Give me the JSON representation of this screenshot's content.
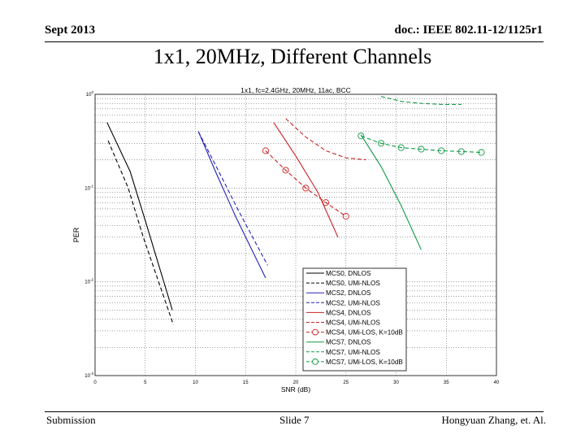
{
  "header": {
    "date": "Sept 2013",
    "doc": "doc.: IEEE 802.11-12/1125r1"
  },
  "slide_title": "1x1, 20MHz, Different Channels",
  "footer": {
    "submission": "Submission",
    "slide": "Slide 7",
    "author": "Hongyuan Zhang, et. Al."
  },
  "chart_data": {
    "type": "line",
    "title": "1x1, fc=2.4GHz, 20MHz, 11ac, BCC",
    "xlabel": "SNR (dB)",
    "ylabel": "PER",
    "yscale": "log",
    "xlim": [
      0,
      40
    ],
    "ylim": [
      0.001,
      1
    ],
    "x_ticks": [
      0,
      5,
      10,
      15,
      20,
      25,
      30,
      35,
      40
    ],
    "x_tick_labels": [
      "0",
      "5",
      "10",
      "15",
      "20",
      "25",
      "30",
      "35",
      "40"
    ],
    "y_ticks": [
      0.001,
      0.01,
      0.1,
      1
    ],
    "y_tick_labels": [
      "10^-3",
      "10^-2",
      "10^-1",
      "10^0"
    ],
    "grid": true,
    "legend_position": "bottom-right",
    "series": [
      {
        "name": "MCS0, DNLOS",
        "color": "#000000",
        "style": "solid",
        "marker": "none",
        "x": [
          1.2,
          3.5,
          5.0,
          7.7
        ],
        "y": [
          0.5,
          0.15,
          0.045,
          0.005
        ]
      },
      {
        "name": "MCS0, UMi-NLOS",
        "color": "#000000",
        "style": "dashed",
        "marker": "none",
        "x": [
          1.3,
          3.3,
          4.8,
          7.8
        ],
        "y": [
          0.32,
          0.1,
          0.03,
          0.0035
        ]
      },
      {
        "name": "MCS2, DNLOS",
        "color": "#2222bb",
        "style": "solid",
        "marker": "none",
        "x": [
          10.3,
          12.0,
          14.0,
          17.0
        ],
        "y": [
          0.4,
          0.15,
          0.05,
          0.011
        ]
      },
      {
        "name": "MCS2, UMi-NLOS",
        "color": "#2222bb",
        "style": "dashed",
        "marker": "none",
        "x": [
          10.3,
          12.2,
          14.2,
          17.2
        ],
        "y": [
          0.4,
          0.16,
          0.06,
          0.015
        ]
      },
      {
        "name": "MCS4, DNLOS",
        "color": "#cc2222",
        "style": "solid",
        "marker": "none",
        "x": [
          17.8,
          20.0,
          22.2,
          24.2
        ],
        "y": [
          0.5,
          0.22,
          0.09,
          0.03
        ]
      },
      {
        "name": "MCS4, UMi-NLOS",
        "color": "#cc2222",
        "style": "dashed",
        "marker": "none",
        "x": [
          19.0,
          21.0,
          23.0,
          25.0,
          27.0
        ],
        "y": [
          0.55,
          0.35,
          0.25,
          0.21,
          0.2
        ]
      },
      {
        "name": "MCS4, UMi-LOS, K=10dB",
        "color": "#cc2222",
        "style": "dashed",
        "marker": "circle",
        "x": [
          17.0,
          19.0,
          21.0,
          23.0,
          25.0
        ],
        "y": [
          0.25,
          0.155,
          0.1,
          0.07,
          0.05
        ]
      },
      {
        "name": "MCS7, DNLOS",
        "color": "#119944",
        "style": "solid",
        "marker": "none",
        "x": [
          26.5,
          28.5,
          30.5,
          32.5
        ],
        "y": [
          0.37,
          0.17,
          0.065,
          0.022
        ]
      },
      {
        "name": "MCS7, UMi-NLOS",
        "color": "#119944",
        "style": "dashed",
        "marker": "none",
        "x": [
          28.5,
          30.5,
          32.5,
          34.5,
          36.5
        ],
        "y": [
          0.95,
          0.84,
          0.8,
          0.78,
          0.78
        ]
      },
      {
        "name": "MCS7, UMi-LOS, K=10dB",
        "color": "#119944",
        "style": "dashed",
        "marker": "circle",
        "x": [
          26.5,
          28.5,
          30.5,
          32.5,
          34.5,
          36.5,
          38.5
        ],
        "y": [
          0.36,
          0.3,
          0.27,
          0.26,
          0.25,
          0.245,
          0.24
        ]
      }
    ]
  }
}
